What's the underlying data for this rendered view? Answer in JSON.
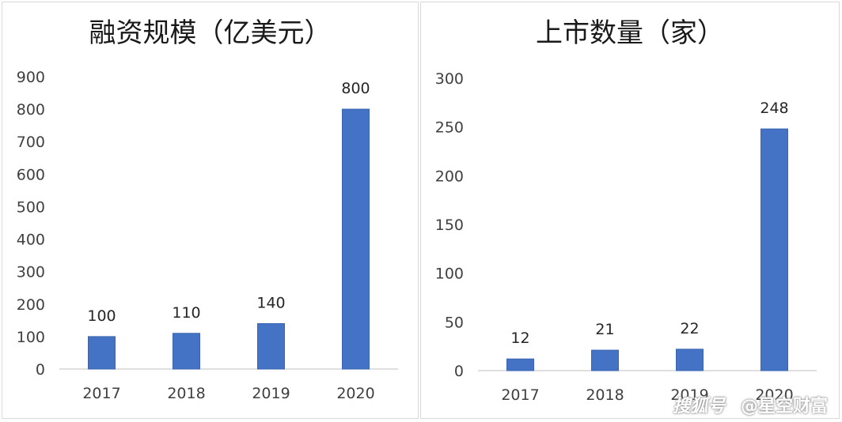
{
  "chart_data": [
    {
      "type": "bar",
      "title": "融资规模（亿美元）",
      "categories": [
        "2017",
        "2018",
        "2019",
        "2020"
      ],
      "values": [
        100,
        110,
        140,
        800
      ],
      "yticks": [
        0,
        100,
        200,
        300,
        400,
        500,
        600,
        700,
        800,
        900
      ],
      "ylim": [
        0,
        900
      ],
      "color": "#4472c4",
      "data_labels": true,
      "grid": false
    },
    {
      "type": "bar",
      "title": "上市数量（家）",
      "categories": [
        "2017",
        "2018",
        "2019",
        "2020"
      ],
      "values": [
        12,
        21,
        22,
        248
      ],
      "yticks": [
        0,
        50,
        100,
        150,
        200,
        250,
        300
      ],
      "ylim": [
        0,
        300
      ],
      "color": "#4472c4",
      "data_labels": true,
      "grid": false
    }
  ],
  "watermark": {
    "brand": "搜狐号",
    "account": "@星空财富"
  }
}
